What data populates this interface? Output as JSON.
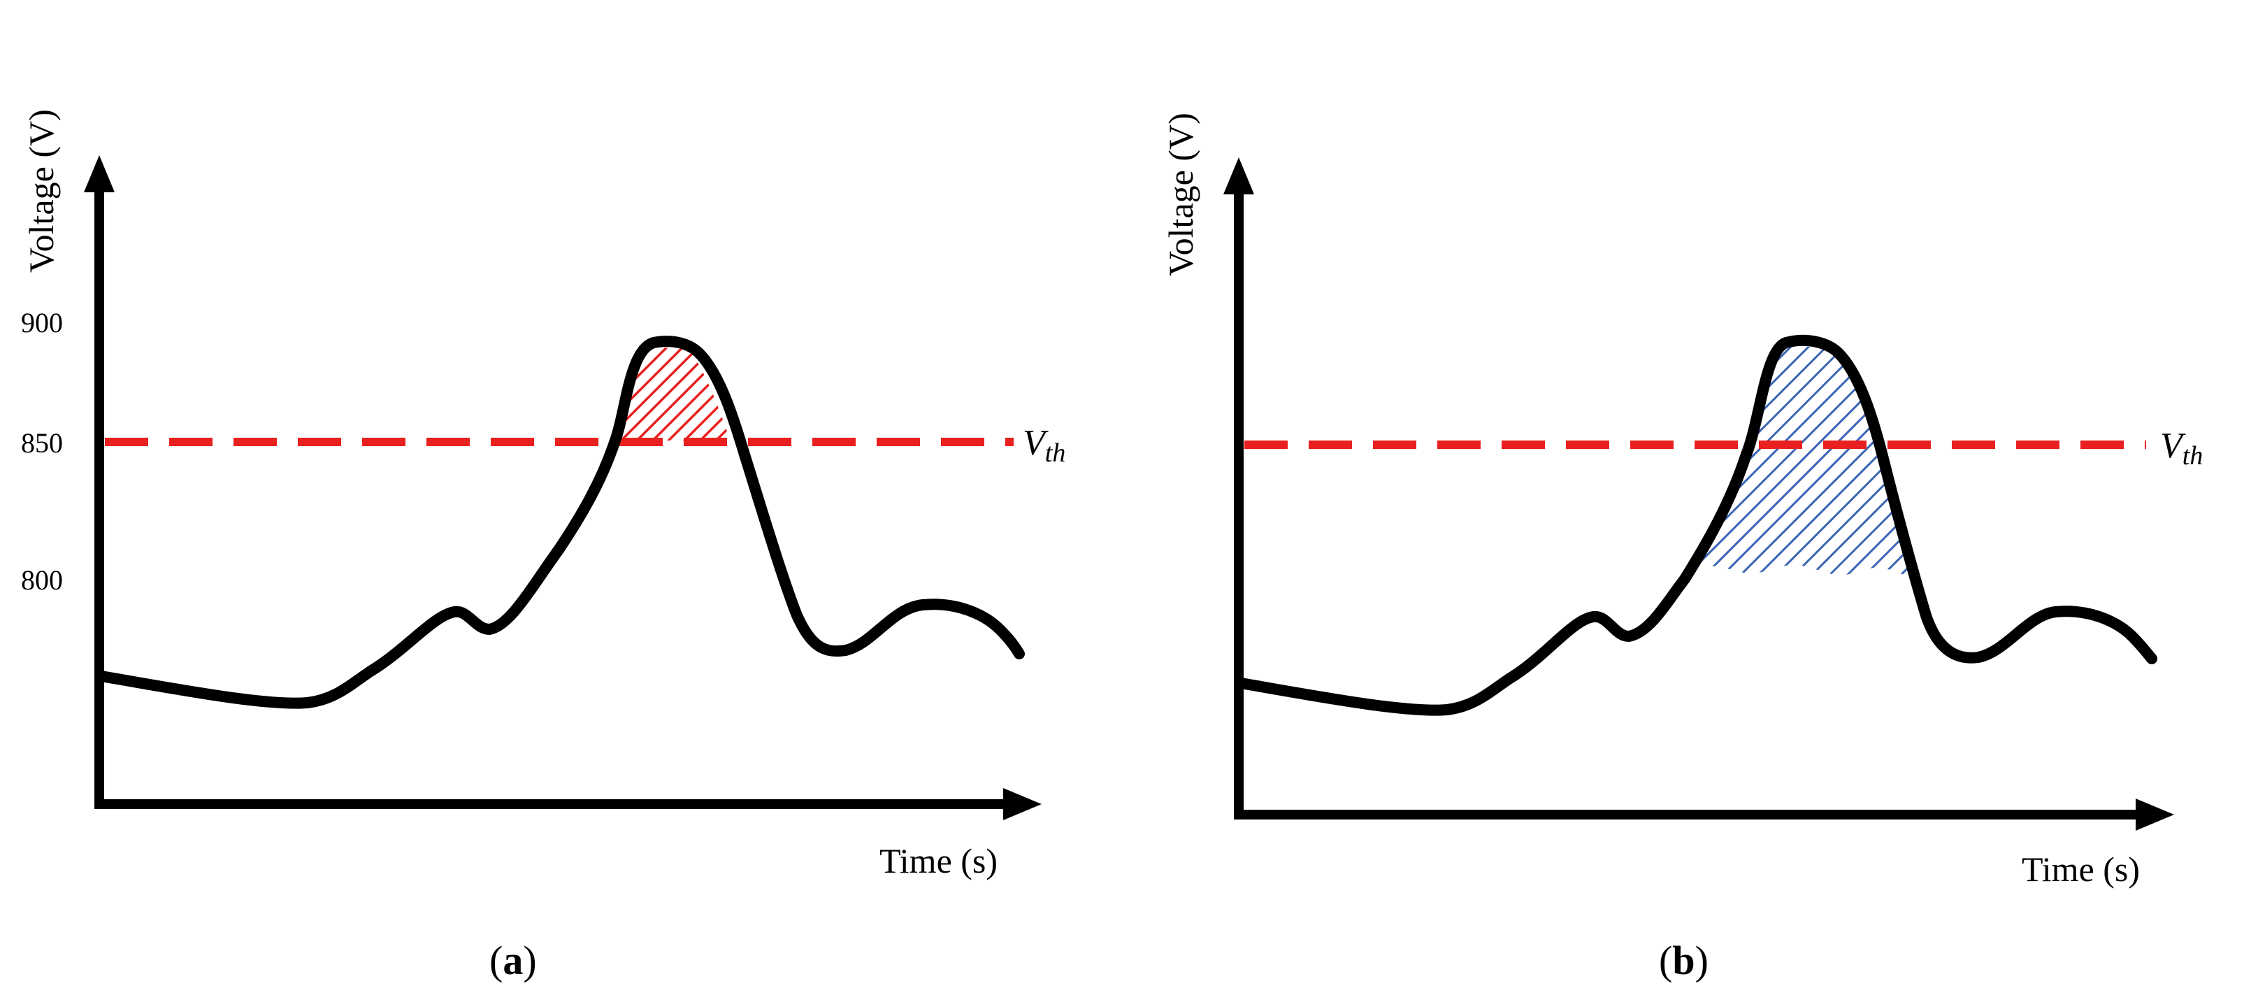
{
  "chart_data": [
    {
      "panel": "a",
      "type": "line",
      "caption": "a",
      "xlabel": "Time (s)",
      "ylabel": "Voltage (V)",
      "yticks": [
        900,
        850,
        800
      ],
      "threshold": {
        "label_main": "V",
        "label_sub": "th",
        "value": 850,
        "color": "#e8201f"
      },
      "waveform_points": [
        {
          "t": 0.0,
          "v": 767
        },
        {
          "t": 0.05,
          "v": 764
        },
        {
          "t": 0.1,
          "v": 761
        },
        {
          "t": 0.15,
          "v": 759
        },
        {
          "t": 0.2,
          "v": 759
        },
        {
          "t": 0.24,
          "v": 763
        },
        {
          "t": 0.3,
          "v": 776
        },
        {
          "t": 0.35,
          "v": 787
        },
        {
          "t": 0.38,
          "v": 781
        },
        {
          "t": 0.42,
          "v": 800
        },
        {
          "t": 0.5,
          "v": 832
        },
        {
          "t": 0.55,
          "v": 860
        },
        {
          "t": 0.58,
          "v": 888
        },
        {
          "t": 0.62,
          "v": 890
        },
        {
          "t": 0.65,
          "v": 880
        },
        {
          "t": 0.69,
          "v": 852
        },
        {
          "t": 0.74,
          "v": 795
        },
        {
          "t": 0.78,
          "v": 774
        },
        {
          "t": 0.83,
          "v": 782
        },
        {
          "t": 0.88,
          "v": 790
        },
        {
          "t": 0.93,
          "v": 787
        },
        {
          "t": 0.98,
          "v": 775
        }
      ],
      "shaded_region": {
        "description": "area above threshold",
        "t_start": 0.56,
        "t_end": 0.7,
        "v_from": 850,
        "color": "#e8201f"
      }
    },
    {
      "panel": "b",
      "type": "line",
      "caption": "b",
      "xlabel": "Time (s)",
      "ylabel": "Voltage (V)",
      "yticks": [],
      "threshold": {
        "label_main": "V",
        "label_sub": "th",
        "value": 850,
        "color": "#e8201f"
      },
      "waveform_points": [
        {
          "t": 0.0,
          "v": 767
        },
        {
          "t": 0.05,
          "v": 764
        },
        {
          "t": 0.1,
          "v": 761
        },
        {
          "t": 0.15,
          "v": 759
        },
        {
          "t": 0.2,
          "v": 759
        },
        {
          "t": 0.24,
          "v": 763
        },
        {
          "t": 0.3,
          "v": 776
        },
        {
          "t": 0.35,
          "v": 787
        },
        {
          "t": 0.38,
          "v": 781
        },
        {
          "t": 0.42,
          "v": 800
        },
        {
          "t": 0.5,
          "v": 832
        },
        {
          "t": 0.55,
          "v": 860
        },
        {
          "t": 0.58,
          "v": 888
        },
        {
          "t": 0.62,
          "v": 890
        },
        {
          "t": 0.65,
          "v": 880
        },
        {
          "t": 0.69,
          "v": 852
        },
        {
          "t": 0.74,
          "v": 795
        },
        {
          "t": 0.78,
          "v": 774
        },
        {
          "t": 0.83,
          "v": 782
        },
        {
          "t": 0.88,
          "v": 790
        },
        {
          "t": 0.93,
          "v": 787
        },
        {
          "t": 0.98,
          "v": 775
        }
      ],
      "shaded_region": {
        "description": "area of peak extending below threshold",
        "t_start": 0.49,
        "t_end": 0.74,
        "v_from": 800,
        "color": "#3a64b4"
      }
    }
  ]
}
